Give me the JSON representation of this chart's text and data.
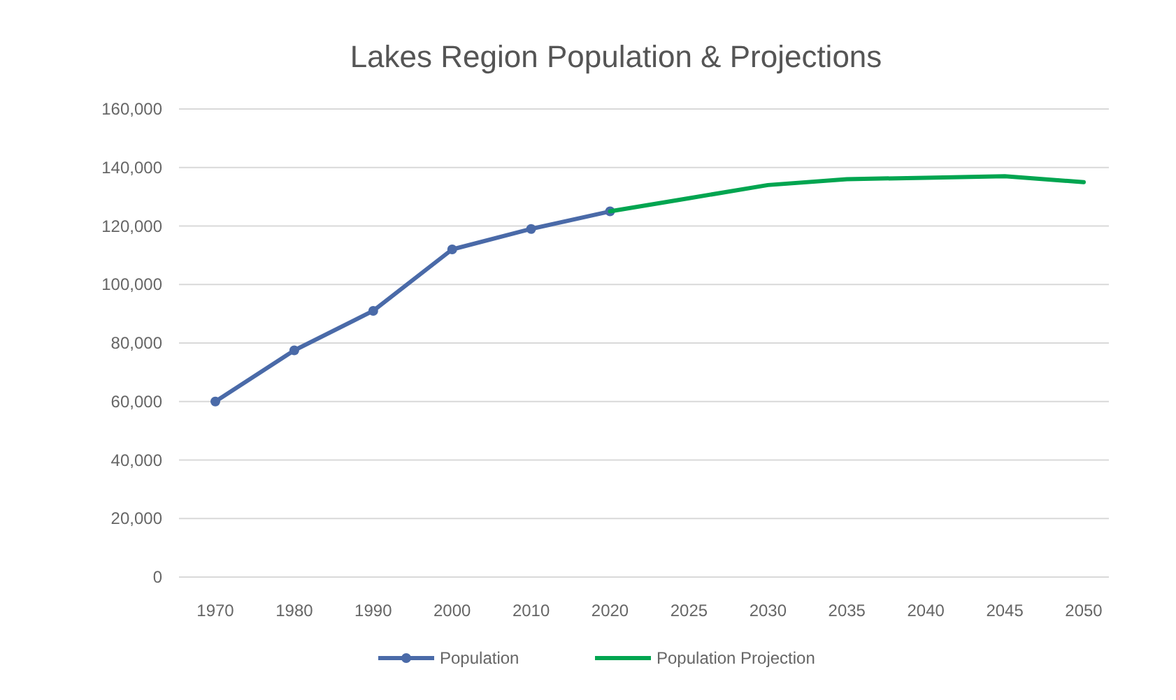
{
  "chart_data": {
    "type": "line",
    "title": "Lakes Region Population & Projections",
    "categories": [
      "1970",
      "1980",
      "1990",
      "2000",
      "2010",
      "2020",
      "2025",
      "2030",
      "2035",
      "2040",
      "2045",
      "2050"
    ],
    "series": [
      {
        "name": "Population",
        "color": "#4a6aa8",
        "marker": "circle",
        "values": [
          60000,
          77500,
          91000,
          112000,
          119000,
          125000,
          null,
          null,
          null,
          null,
          null,
          null
        ]
      },
      {
        "name": "Population Projection",
        "color": "#00a550",
        "marker": "none",
        "values": [
          null,
          null,
          null,
          null,
          null,
          125000,
          129500,
          134000,
          136000,
          136500,
          137000,
          135000
        ]
      }
    ],
    "ylim": [
      0,
      160000
    ],
    "yticks": [
      {
        "value": 0,
        "label": "0"
      },
      {
        "value": 20000,
        "label": "20,000"
      },
      {
        "value": 40000,
        "label": "40,000"
      },
      {
        "value": 60000,
        "label": "60,000"
      },
      {
        "value": 80000,
        "label": "80,000"
      },
      {
        "value": 100000,
        "label": "100,000"
      },
      {
        "value": 120000,
        "label": "120,000"
      },
      {
        "value": 140000,
        "label": "140,000"
      },
      {
        "value": 160000,
        "label": "160,000"
      }
    ],
    "grid": "y",
    "legend": "bottom",
    "line_style": "solid"
  }
}
